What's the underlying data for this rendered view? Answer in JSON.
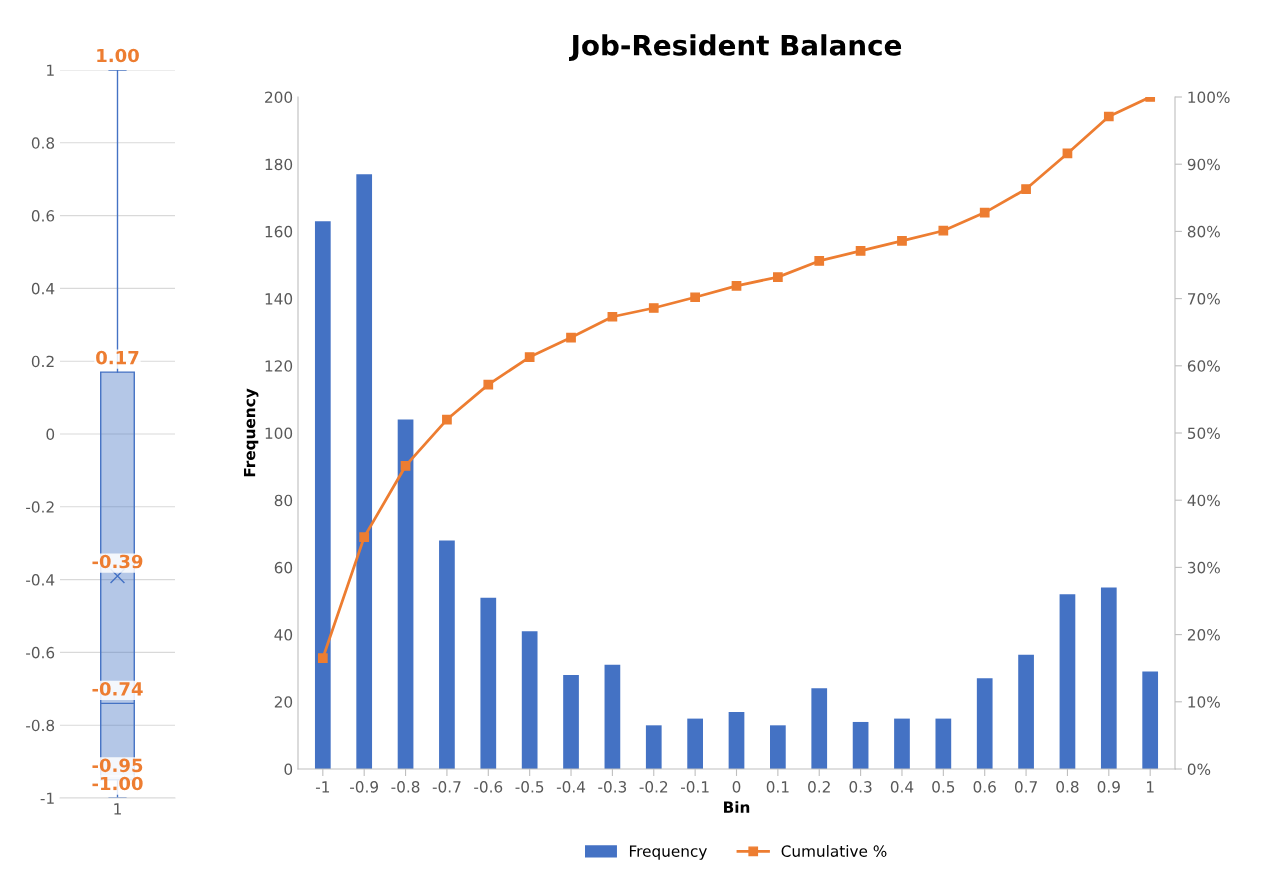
{
  "chart_data": [
    {
      "type": "box",
      "categories": [
        "1"
      ],
      "color": "#4472c4",
      "boxes": [
        {
          "low": -1,
          "q1": -0.95,
          "median": -0.74,
          "q3": 0.17,
          "high": 1,
          "mean": -0.39
        }
      ],
      "ylim": [
        -1,
        1
      ],
      "yticks": [
        -1,
        -0.8,
        -0.6,
        -0.4,
        -0.2,
        0,
        0.2,
        0.4,
        0.6,
        0.8,
        1
      ],
      "grid": "y",
      "annotations": [
        {
          "text": "1.00",
          "x": "1",
          "y": 1
        },
        {
          "text": "0.17",
          "x": "1",
          "y": 0.17
        },
        "-0.39",
        {
          "text": "-0.74",
          "x": "1",
          "y": -0.74
        },
        {
          "text": "-0.95",
          "x": "1",
          "y": -0.95
        },
        {
          "text": "-1.00",
          "x": "1",
          "y": -1
        }
      ]
    },
    {
      "type": "bar",
      "title": "Job-Resident Balance",
      "xlabel": "Bin",
      "ylabel": "Frequency",
      "categories": [
        "-1",
        "-0.9",
        "-0.8",
        "-0.7",
        "-0.6",
        "-0.5",
        "-0.4",
        "-0.3",
        "-0.2",
        "-0.1",
        "0",
        "0.1",
        "0.2",
        "0.3",
        "0.4",
        "0.5",
        "0.6",
        "0.7",
        "0.8",
        "0.9",
        "1"
      ],
      "series": [
        {
          "name": "Frequency",
          "color": "#4472c4",
          "values": [
            163,
            177,
            104,
            68,
            51,
            41,
            28,
            31,
            13,
            15,
            17,
            13,
            24,
            14,
            15,
            15,
            27,
            34,
            52,
            54,
            29
          ]
        },
        {
          "name": "Cumulative %",
          "type": "line",
          "axis": "y2",
          "color": "#ed7d31",
          "marker": "square",
          "values": [
            16.5,
            34.5,
            45.1,
            52.0,
            57.2,
            61.3,
            64.2,
            67.3,
            68.6,
            70.2,
            71.9,
            73.2,
            75.6,
            77.1,
            78.6,
            80.1,
            82.8,
            86.3,
            91.6,
            97.1,
            100
          ]
        }
      ],
      "ylim": [
        0,
        200
      ],
      "yticks": [
        0,
        20,
        40,
        60,
        80,
        100,
        120,
        140,
        160,
        180,
        200
      ],
      "y2lim": [
        0,
        100
      ],
      "y2ticks": [
        {
          "value": 0,
          "label": "0%"
        },
        {
          "value": 10,
          "label": "10%"
        },
        {
          "value": 20,
          "label": "20%"
        },
        {
          "value": 30,
          "label": "30%"
        },
        {
          "value": 40,
          "label": "40%"
        },
        {
          "value": 50,
          "label": "50%"
        },
        {
          "value": 60,
          "label": "60%"
        },
        {
          "value": 70,
          "label": "70%"
        },
        {
          "value": 80,
          "label": "80%"
        },
        {
          "value": 90,
          "label": "90%"
        },
        {
          "value": 100,
          "label": "100%"
        }
      ],
      "grid": false,
      "legend": "bottom"
    }
  ]
}
